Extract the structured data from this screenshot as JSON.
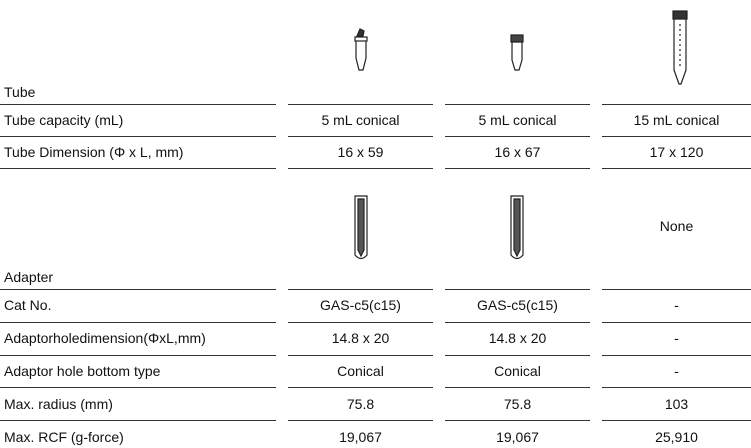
{
  "tube": {
    "label": "Tube",
    "rows": [
      [
        "Tube capacity (mL)",
        "5 mL conical",
        "5 mL conical",
        "15 mL conical"
      ],
      [
        "Tube Dimension (Φ x L, mm)",
        "16 x 59",
        "16 x 67",
        "17 x 120"
      ]
    ]
  },
  "adapter": {
    "label": "Adapter",
    "missing": "None",
    "rows": [
      [
        "Cat No.",
        "GAS-c5(c15)",
        "GAS-c5(c15)",
        "-"
      ],
      [
        "Adaptorholedimension(ΦxL,mm)",
        "14.8 x 20",
        "14.8 x 20",
        "-"
      ],
      [
        "Adaptor hole bottom type",
        "Conical",
        "Conical",
        "-"
      ],
      [
        "Max. radius (mm)",
        "75.8",
        "75.8",
        "103"
      ],
      [
        "Max. RCF (g-force)",
        "19,067",
        "19,067",
        "25,910"
      ]
    ]
  }
}
